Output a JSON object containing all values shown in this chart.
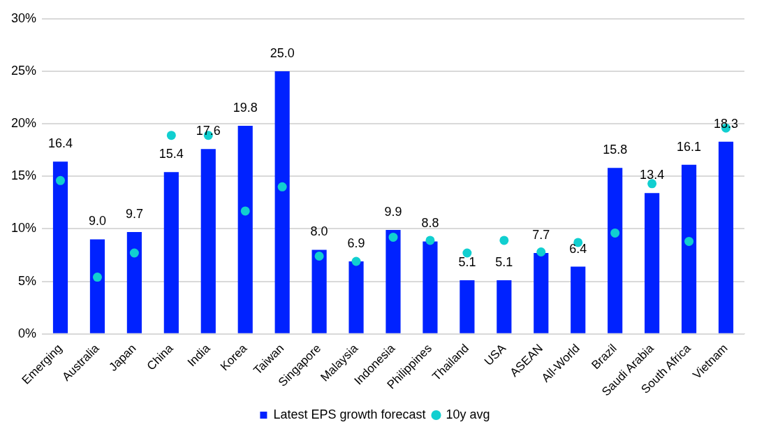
{
  "chart_data": {
    "type": "bar",
    "categories": [
      "Emerging",
      "Australia",
      "Japan",
      "China",
      "India",
      "Korea",
      "Taiwan",
      "Singapore",
      "Malaysia",
      "Indonesia",
      "Philippines",
      "Thailand",
      "USA",
      "ASEAN",
      "All-World",
      "Brazil",
      "Saudi Arabia",
      "South Africa",
      "Vietnam"
    ],
    "series": [
      {
        "name": "Latest EPS growth forecast",
        "color": "#0022ff",
        "values": [
          16.4,
          9.0,
          9.7,
          15.4,
          17.6,
          19.8,
          25.0,
          8.0,
          6.9,
          9.9,
          8.8,
          5.1,
          5.1,
          7.7,
          6.4,
          15.8,
          13.4,
          16.1,
          18.3
        ],
        "value_labels": [
          "16.4",
          "9.0",
          "9.7",
          "15.4",
          "17.6",
          "19.8",
          "25.0",
          "8.0",
          "6.9",
          "9.9",
          "8.8",
          "5.1",
          "5.1",
          "7.7",
          "6.4",
          "15.8",
          "13.4",
          "16.1",
          "18.3"
        ]
      },
      {
        "name": "10y avg",
        "type": "scatter",
        "color": "#11cfd0",
        "marker": "circle",
        "values": [
          14.6,
          5.4,
          7.7,
          18.9,
          18.9,
          11.7,
          14.0,
          7.4,
          6.9,
          9.2,
          8.9,
          7.7,
          8.9,
          7.8,
          8.7,
          9.6,
          14.3,
          8.8,
          19.6
        ]
      }
    ],
    "ylim": [
      0,
      30
    ],
    "yticks": [
      {
        "value": 0,
        "label": "0%"
      },
      {
        "value": 5,
        "label": "5%"
      },
      {
        "value": 10,
        "label": "10%"
      },
      {
        "value": 15,
        "label": "15%"
      },
      {
        "value": 20,
        "label": "20%"
      },
      {
        "value": 25,
        "label": "25%"
      },
      {
        "value": 30,
        "label": "30%"
      }
    ],
    "grid": "y",
    "legend": "bottom"
  }
}
